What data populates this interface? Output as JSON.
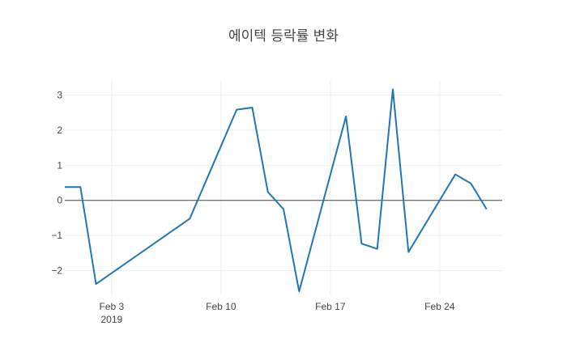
{
  "chart_data": {
    "type": "line",
    "title": "에이텍 등락률 변화",
    "xlabel": "",
    "ylabel": "",
    "x_range": [
      "2019-01-31",
      "2019-02-28"
    ],
    "ylim": [
      -2.7,
      3.4
    ],
    "grid": true,
    "legend": "none",
    "x_ticks": [
      {
        "date": "2019-02-03",
        "label": "Feb 3",
        "sublabel": "2019"
      },
      {
        "date": "2019-02-10",
        "label": "Feb 10",
        "sublabel": ""
      },
      {
        "date": "2019-02-17",
        "label": "Feb 17",
        "sublabel": ""
      },
      {
        "date": "2019-02-24",
        "label": "Feb 24",
        "sublabel": ""
      }
    ],
    "y_ticks": [
      {
        "value": 3,
        "label": "3"
      },
      {
        "value": 2,
        "label": "2"
      },
      {
        "value": 1,
        "label": "1"
      },
      {
        "value": 0,
        "label": "0"
      },
      {
        "value": -1,
        "label": "−1"
      },
      {
        "value": -2,
        "label": "−2"
      }
    ],
    "series": [
      {
        "color": "#1f77b4",
        "x": [
          "2019-01-31",
          "2019-02-01",
          "2019-02-02",
          "2019-02-08",
          "2019-02-11",
          "2019-02-12",
          "2019-02-13",
          "2019-02-14",
          "2019-02-15",
          "2019-02-18",
          "2019-02-19",
          "2019-02-20",
          "2019-02-21",
          "2019-02-22",
          "2019-02-25",
          "2019-02-26",
          "2019-02-27"
        ],
        "values": [
          0.38,
          0.38,
          -2.38,
          -0.52,
          2.58,
          2.64,
          0.24,
          -0.25,
          -2.59,
          2.39,
          -1.23,
          -1.38,
          3.16,
          -1.47,
          0.74,
          0.48,
          -0.25
        ]
      }
    ],
    "colors": {
      "line": "#1f77b4",
      "grid": "#eeeeee",
      "zeroline": "#444444",
      "text": "#444444"
    }
  }
}
